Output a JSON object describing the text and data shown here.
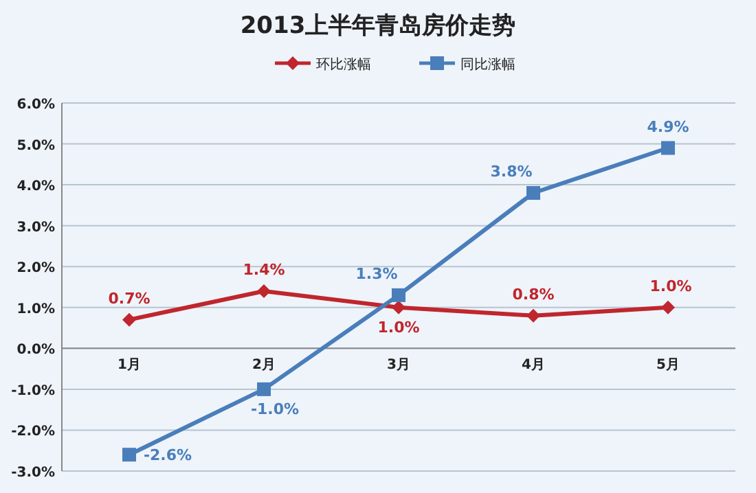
{
  "chart_data": {
    "type": "line",
    "title": "2013上半年青岛房价走势",
    "categories": [
      "1月",
      "2月",
      "3月",
      "4月",
      "5月"
    ],
    "series": [
      {
        "name": "环比涨幅",
        "color": "#c0262d",
        "marker": "diamond",
        "values": [
          0.7,
          1.4,
          1.0,
          0.8,
          1.0
        ],
        "value_labels": [
          "0.7%",
          "1.4%",
          "1.0%",
          "0.8%",
          "1.0%"
        ]
      },
      {
        "name": "同比涨幅",
        "color": "#4a7ebb",
        "marker": "square",
        "values": [
          -2.6,
          -1.0,
          1.3,
          3.8,
          4.9
        ],
        "value_labels": [
          "-2.6%",
          "-1.0%",
          "1.3%",
          "3.8%",
          "4.9%"
        ]
      }
    ],
    "ylim": [
      -3,
      6
    ],
    "yticks": [
      {
        "value": -3,
        "label": "-3.0%"
      },
      {
        "value": -2,
        "label": "-2.0%"
      },
      {
        "value": -1,
        "label": "-1.0%"
      },
      {
        "value": 0,
        "label": "0.0%"
      },
      {
        "value": 1,
        "label": "1.0%"
      },
      {
        "value": 2,
        "label": "2.0%"
      },
      {
        "value": 3,
        "label": "3.0%"
      },
      {
        "value": 4,
        "label": "4.0%"
      },
      {
        "value": 5,
        "label": "5.0%"
      },
      {
        "value": 6,
        "label": "6.0%"
      }
    ],
    "grid": "y",
    "legend": "top",
    "line_style": "solid"
  }
}
